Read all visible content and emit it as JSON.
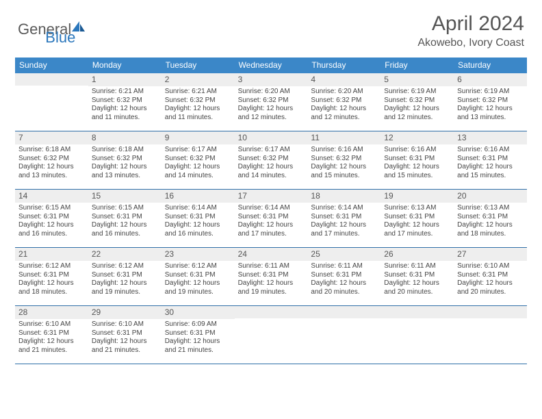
{
  "logo": {
    "part1": "General",
    "part2": "Blue"
  },
  "title": "April 2024",
  "location": "Akowebo, Ivory Coast",
  "colors": {
    "header_bg": "#3b87c8",
    "header_text": "#ffffff",
    "daynum_bg": "#eeeeee",
    "border": "#2f6fa8",
    "logo_blue": "#2b77bc",
    "logo_gray": "#5a5a5a",
    "text": "#444444"
  },
  "weekdays": [
    "Sunday",
    "Monday",
    "Tuesday",
    "Wednesday",
    "Thursday",
    "Friday",
    "Saturday"
  ],
  "weeks": [
    [
      {
        "n": "",
        "sr": "",
        "ss": "",
        "dl": ""
      },
      {
        "n": "1",
        "sr": "6:21 AM",
        "ss": "6:32 PM",
        "dl": "12 hours and 11 minutes."
      },
      {
        "n": "2",
        "sr": "6:21 AM",
        "ss": "6:32 PM",
        "dl": "12 hours and 11 minutes."
      },
      {
        "n": "3",
        "sr": "6:20 AM",
        "ss": "6:32 PM",
        "dl": "12 hours and 12 minutes."
      },
      {
        "n": "4",
        "sr": "6:20 AM",
        "ss": "6:32 PM",
        "dl": "12 hours and 12 minutes."
      },
      {
        "n": "5",
        "sr": "6:19 AM",
        "ss": "6:32 PM",
        "dl": "12 hours and 12 minutes."
      },
      {
        "n": "6",
        "sr": "6:19 AM",
        "ss": "6:32 PM",
        "dl": "12 hours and 13 minutes."
      }
    ],
    [
      {
        "n": "7",
        "sr": "6:18 AM",
        "ss": "6:32 PM",
        "dl": "12 hours and 13 minutes."
      },
      {
        "n": "8",
        "sr": "6:18 AM",
        "ss": "6:32 PM",
        "dl": "12 hours and 13 minutes."
      },
      {
        "n": "9",
        "sr": "6:17 AM",
        "ss": "6:32 PM",
        "dl": "12 hours and 14 minutes."
      },
      {
        "n": "10",
        "sr": "6:17 AM",
        "ss": "6:32 PM",
        "dl": "12 hours and 14 minutes."
      },
      {
        "n": "11",
        "sr": "6:16 AM",
        "ss": "6:32 PM",
        "dl": "12 hours and 15 minutes."
      },
      {
        "n": "12",
        "sr": "6:16 AM",
        "ss": "6:31 PM",
        "dl": "12 hours and 15 minutes."
      },
      {
        "n": "13",
        "sr": "6:16 AM",
        "ss": "6:31 PM",
        "dl": "12 hours and 15 minutes."
      }
    ],
    [
      {
        "n": "14",
        "sr": "6:15 AM",
        "ss": "6:31 PM",
        "dl": "12 hours and 16 minutes."
      },
      {
        "n": "15",
        "sr": "6:15 AM",
        "ss": "6:31 PM",
        "dl": "12 hours and 16 minutes."
      },
      {
        "n": "16",
        "sr": "6:14 AM",
        "ss": "6:31 PM",
        "dl": "12 hours and 16 minutes."
      },
      {
        "n": "17",
        "sr": "6:14 AM",
        "ss": "6:31 PM",
        "dl": "12 hours and 17 minutes."
      },
      {
        "n": "18",
        "sr": "6:14 AM",
        "ss": "6:31 PM",
        "dl": "12 hours and 17 minutes."
      },
      {
        "n": "19",
        "sr": "6:13 AM",
        "ss": "6:31 PM",
        "dl": "12 hours and 17 minutes."
      },
      {
        "n": "20",
        "sr": "6:13 AM",
        "ss": "6:31 PM",
        "dl": "12 hours and 18 minutes."
      }
    ],
    [
      {
        "n": "21",
        "sr": "6:12 AM",
        "ss": "6:31 PM",
        "dl": "12 hours and 18 minutes."
      },
      {
        "n": "22",
        "sr": "6:12 AM",
        "ss": "6:31 PM",
        "dl": "12 hours and 19 minutes."
      },
      {
        "n": "23",
        "sr": "6:12 AM",
        "ss": "6:31 PM",
        "dl": "12 hours and 19 minutes."
      },
      {
        "n": "24",
        "sr": "6:11 AM",
        "ss": "6:31 PM",
        "dl": "12 hours and 19 minutes."
      },
      {
        "n": "25",
        "sr": "6:11 AM",
        "ss": "6:31 PM",
        "dl": "12 hours and 20 minutes."
      },
      {
        "n": "26",
        "sr": "6:11 AM",
        "ss": "6:31 PM",
        "dl": "12 hours and 20 minutes."
      },
      {
        "n": "27",
        "sr": "6:10 AM",
        "ss": "6:31 PM",
        "dl": "12 hours and 20 minutes."
      }
    ],
    [
      {
        "n": "28",
        "sr": "6:10 AM",
        "ss": "6:31 PM",
        "dl": "12 hours and 21 minutes."
      },
      {
        "n": "29",
        "sr": "6:10 AM",
        "ss": "6:31 PM",
        "dl": "12 hours and 21 minutes."
      },
      {
        "n": "30",
        "sr": "6:09 AM",
        "ss": "6:31 PM",
        "dl": "12 hours and 21 minutes."
      },
      {
        "n": "",
        "sr": "",
        "ss": "",
        "dl": ""
      },
      {
        "n": "",
        "sr": "",
        "ss": "",
        "dl": ""
      },
      {
        "n": "",
        "sr": "",
        "ss": "",
        "dl": ""
      },
      {
        "n": "",
        "sr": "",
        "ss": "",
        "dl": ""
      }
    ]
  ],
  "labels": {
    "sunrise": "Sunrise: ",
    "sunset": "Sunset: ",
    "daylight": "Daylight: "
  }
}
